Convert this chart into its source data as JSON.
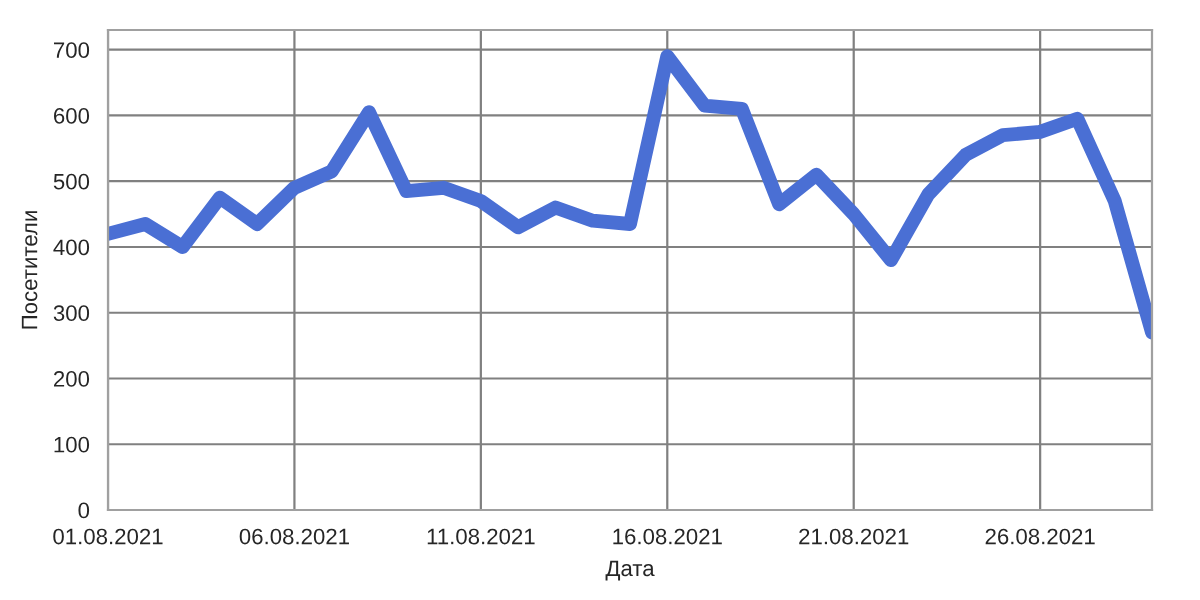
{
  "chart_data": {
    "type": "line",
    "xlabel": "Дата",
    "ylabel": "Посетители",
    "x": [
      "2021-08-01",
      "2021-08-02",
      "2021-08-03",
      "2021-08-04",
      "2021-08-05",
      "2021-08-06",
      "2021-08-07",
      "2021-08-08",
      "2021-08-09",
      "2021-08-10",
      "2021-08-11",
      "2021-08-12",
      "2021-08-13",
      "2021-08-14",
      "2021-08-15",
      "2021-08-16",
      "2021-08-17",
      "2021-08-18",
      "2021-08-19",
      "2021-08-20",
      "2021-08-21",
      "2021-08-22",
      "2021-08-23",
      "2021-08-24",
      "2021-08-25",
      "2021-08-26",
      "2021-08-27",
      "2021-08-28",
      "2021-08-29"
    ],
    "series": [
      {
        "color": "#4a6fd4",
        "values": [
          420,
          435,
          400,
          475,
          435,
          490,
          515,
          605,
          485,
          490,
          470,
          430,
          460,
          440,
          435,
          690,
          615,
          610,
          465,
          510,
          450,
          380,
          480,
          540,
          570,
          575,
          595,
          470,
          270
        ]
      }
    ],
    "xlim": [
      "2021-08-01",
      "2021-08-29"
    ],
    "xticks": [
      {
        "value": "2021-08-01",
        "label": "01.08.2021"
      },
      {
        "value": "2021-08-06",
        "label": "06.08.2021"
      },
      {
        "value": "2021-08-11",
        "label": "11.08.2021"
      },
      {
        "value": "2021-08-16",
        "label": "16.08.2021"
      },
      {
        "value": "2021-08-21",
        "label": "21.08.2021"
      },
      {
        "value": "2021-08-26",
        "label": "26.08.2021"
      }
    ],
    "ylim": [
      0,
      730
    ],
    "yticks": [
      0,
      100,
      200,
      300,
      400,
      500,
      600,
      700
    ],
    "grid": true,
    "legend": false,
    "marker": "none",
    "line_style": "solid"
  }
}
